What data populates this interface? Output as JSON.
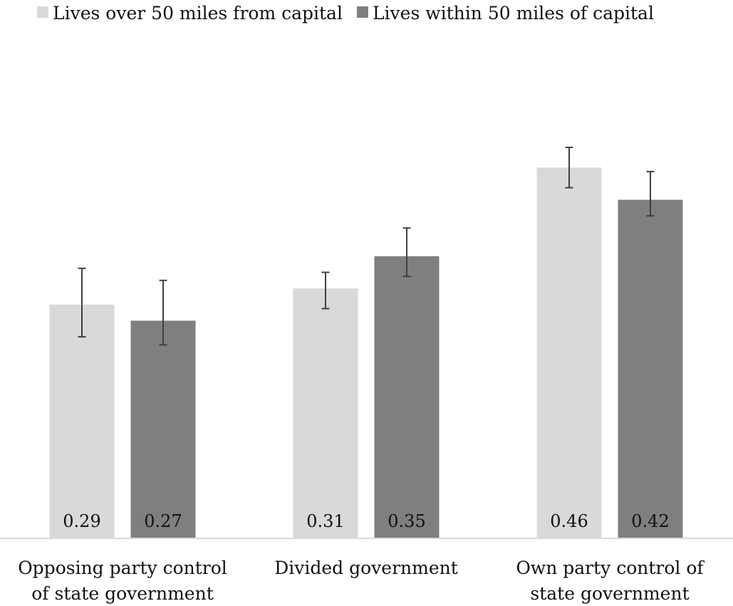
{
  "chart_data": {
    "type": "bar",
    "title": "",
    "xlabel": "",
    "ylabel": "",
    "ylim": [
      0,
      0.55
    ],
    "grid": false,
    "legend_position": "top-left",
    "categories": [
      [
        "Opposing party control",
        "of state government"
      ],
      [
        "Divided government"
      ],
      [
        "Own party control of",
        "state government"
      ]
    ],
    "series": [
      {
        "name": "Lives over 50 miles from capital",
        "color": "#d9d9d9",
        "values": [
          0.29,
          0.31,
          0.46
        ],
        "labels": [
          "0.29",
          "0.31",
          "0.46"
        ],
        "error_low": [
          0.25,
          0.285,
          0.435
        ],
        "error_high": [
          0.335,
          0.33,
          0.485
        ]
      },
      {
        "name": "Lives within 50 miles of capital",
        "color": "#7f7f7f",
        "values": [
          0.27,
          0.35,
          0.42
        ],
        "labels": [
          "0.27",
          "0.35",
          "0.42"
        ],
        "error_low": [
          0.24,
          0.325,
          0.4
        ],
        "error_high": [
          0.32,
          0.385,
          0.455
        ]
      }
    ],
    "axis_color": "#d9d9d9",
    "error_bar_color": "#404040"
  }
}
